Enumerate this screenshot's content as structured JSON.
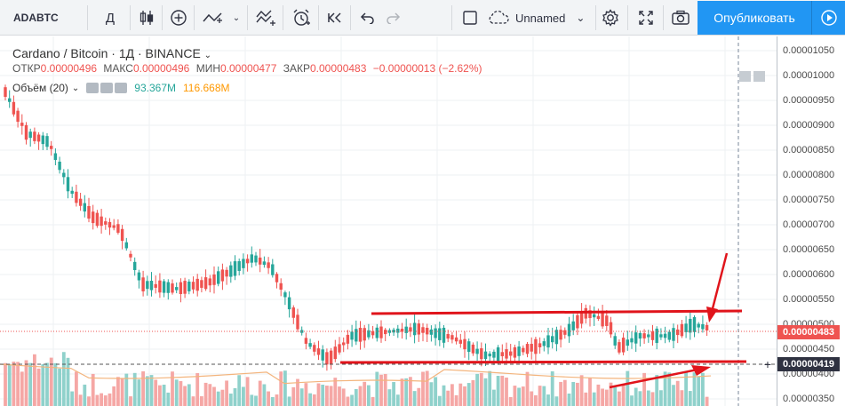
{
  "toolbar": {
    "symbol": "ADABTC",
    "interval": "Д",
    "layout_name": "Unnamed",
    "publish_label": "Опубликовать"
  },
  "legend": {
    "title": "Cardano / Bitcoin · 1Д · BINANCE",
    "open_label": "ОТКР",
    "open": "0.00000496",
    "high_label": "МАКС",
    "high": "0.00000496",
    "low_label": "МИН",
    "low": "0.00000477",
    "close_label": "ЗАКР",
    "close": "0.00000483",
    "change": "−0.00000013 (−2.62%)",
    "volume_label": "Объём (20)",
    "volume_value": "93.367M",
    "volume_ma": "116.668M"
  },
  "axis": {
    "ticks": [
      "0.00001050",
      "0.00001000",
      "0.00000950",
      "0.00000900",
      "0.00000850",
      "0.00000800",
      "0.00000750",
      "0.00000700",
      "0.00000650",
      "0.00000600",
      "0.00000550",
      "0.00000500",
      "0.00000450",
      "0.00000400",
      "0.00000350"
    ],
    "last_price": "0.00000483",
    "crosshair_price": "0.00000419"
  },
  "colors": {
    "up": "#26a69a",
    "down": "#ef5350",
    "accent": "#2196f3",
    "annotation": "#e0141b"
  },
  "icons": [
    "indicators-icon",
    "compare-icon",
    "bars-style-icon",
    "add-icon",
    "line-tool-icon",
    "fib-icon",
    "alert-icon",
    "replay-icon",
    "undo-icon",
    "redo-icon",
    "fullscreen-icon",
    "settings-icon",
    "snapshot-icon",
    "chevron-right-icon"
  ]
}
